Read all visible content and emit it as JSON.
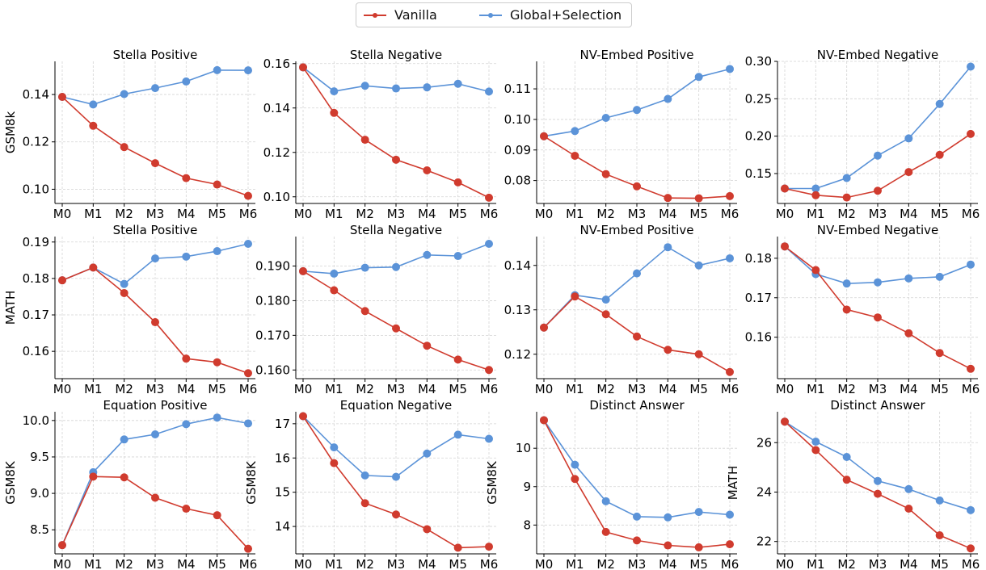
{
  "legend": {
    "placement": "top-center",
    "entries": [
      {
        "label": "Vanilla",
        "color": "#d03b2e"
      },
      {
        "label": "Global+Selection",
        "color": "#5b93d8"
      }
    ]
  },
  "chart_data": [
    {
      "type": "line",
      "title": "Stella Positive",
      "ylabel": "GSM8k",
      "categories": [
        "M0",
        "M1",
        "M2",
        "M3",
        "M4",
        "M5",
        "M6"
      ],
      "ylim": [
        0.094,
        0.154
      ],
      "yticks": [
        0.1,
        0.12,
        0.14
      ],
      "yticklabels": [
        "0.10",
        "0.12",
        "0.14"
      ],
      "series": [
        {
          "name": "Vanilla",
          "values": [
            0.139,
            0.1268,
            0.1178,
            0.111,
            0.1047,
            0.102,
            0.0972
          ]
        },
        {
          "name": "Global+Selection",
          "values": [
            0.139,
            0.1358,
            0.1402,
            0.1427,
            0.1455,
            0.1503,
            0.1502
          ]
        }
      ]
    },
    {
      "type": "line",
      "title": "Stella Negative",
      "ylabel": "",
      "categories": [
        "M0",
        "M1",
        "M2",
        "M3",
        "M4",
        "M5",
        "M6"
      ],
      "ylim": [
        0.097,
        0.161
      ],
      "yticks": [
        0.1,
        0.12,
        0.14,
        0.16
      ],
      "yticklabels": [
        "0.10",
        "0.12",
        "0.14",
        "0.16"
      ],
      "series": [
        {
          "name": "Vanilla",
          "values": [
            0.1583,
            0.1378,
            0.1257,
            0.1167,
            0.1119,
            0.1065,
            0.0996
          ]
        },
        {
          "name": "Global+Selection",
          "values": [
            0.1583,
            0.1475,
            0.15,
            0.1488,
            0.1493,
            0.1509,
            0.1474
          ]
        }
      ]
    },
    {
      "type": "line",
      "title": "NV-Embed Positive",
      "ylabel": "",
      "categories": [
        "M0",
        "M1",
        "M2",
        "M3",
        "M4",
        "M5",
        "M6"
      ],
      "ylim": [
        0.0725,
        0.119
      ],
      "yticks": [
        0.08,
        0.09,
        0.1,
        0.11
      ],
      "yticklabels": [
        "0.08",
        "0.09",
        "0.10",
        "0.11"
      ],
      "series": [
        {
          "name": "Vanilla",
          "values": [
            0.0945,
            0.0881,
            0.0821,
            0.0781,
            0.0743,
            0.0742,
            0.0749
          ]
        },
        {
          "name": "Global+Selection",
          "values": [
            0.0945,
            0.0962,
            0.1005,
            0.1031,
            0.1067,
            0.1139,
            0.1165
          ]
        }
      ]
    },
    {
      "type": "line",
      "title": "NV-Embed Negative",
      "ylabel": "",
      "categories": [
        "M0",
        "M1",
        "M2",
        "M3",
        "M4",
        "M5",
        "M6"
      ],
      "ylim": [
        0.11,
        0.3
      ],
      "yticks": [
        0.15,
        0.2,
        0.25,
        0.3
      ],
      "yticklabels": [
        "0.15",
        "0.20",
        "0.25",
        "0.30"
      ],
      "series": [
        {
          "name": "Vanilla",
          "values": [
            0.13,
            0.121,
            0.118,
            0.127,
            0.152,
            0.175,
            0.203
          ]
        },
        {
          "name": "Global+Selection",
          "values": [
            0.13,
            0.13,
            0.144,
            0.174,
            0.197,
            0.243,
            0.293
          ]
        }
      ]
    },
    {
      "type": "line",
      "title": "Stella Positive",
      "ylabel": "MATH",
      "categories": [
        "M0",
        "M1",
        "M2",
        "M3",
        "M4",
        "M5",
        "M6"
      ],
      "ylim": [
        0.1525,
        0.1915
      ],
      "yticks": [
        0.16,
        0.17,
        0.18,
        0.19
      ],
      "yticklabels": [
        "0.16",
        "0.17",
        "0.18",
        "0.19"
      ],
      "series": [
        {
          "name": "Vanilla",
          "values": [
            0.1795,
            0.183,
            0.176,
            0.168,
            0.158,
            0.157,
            0.154
          ]
        },
        {
          "name": "Global+Selection",
          "values": [
            0.1795,
            0.183,
            0.1785,
            0.1855,
            0.186,
            0.1875,
            0.1895
          ]
        }
      ]
    },
    {
      "type": "line",
      "title": "Stella Negative",
      "ylabel": "",
      "categories": [
        "M0",
        "M1",
        "M2",
        "M3",
        "M4",
        "M5",
        "M6"
      ],
      "ylim": [
        0.1575,
        0.1985
      ],
      "yticks": [
        0.16,
        0.17,
        0.18,
        0.19
      ],
      "yticklabels": [
        "0.160",
        "0.170",
        "0.180",
        "0.190"
      ],
      "series": [
        {
          "name": "Vanilla",
          "values": [
            0.1885,
            0.183,
            0.177,
            0.172,
            0.167,
            0.163,
            0.16
          ]
        },
        {
          "name": "Global+Selection",
          "values": [
            0.1885,
            0.1878,
            0.1895,
            0.1897,
            0.1932,
            0.1929,
            0.1964
          ]
        }
      ]
    },
    {
      "type": "line",
      "title": "NV-Embed Positive",
      "ylabel": "",
      "categories": [
        "M0",
        "M1",
        "M2",
        "M3",
        "M4",
        "M5",
        "M6"
      ],
      "ylim": [
        0.1145,
        0.1465
      ],
      "yticks": [
        0.12,
        0.13,
        0.14
      ],
      "yticklabels": [
        "0.12",
        "0.13",
        "0.14"
      ],
      "series": [
        {
          "name": "Vanilla",
          "values": [
            0.126,
            0.133,
            0.129,
            0.124,
            0.121,
            0.12,
            0.116
          ]
        },
        {
          "name": "Global+Selection",
          "values": [
            0.126,
            0.1333,
            0.1323,
            0.1382,
            0.1441,
            0.14,
            0.1416
          ]
        }
      ]
    },
    {
      "type": "line",
      "title": "NV-Embed Negative",
      "ylabel": "",
      "categories": [
        "M0",
        "M1",
        "M2",
        "M3",
        "M4",
        "M5",
        "M6"
      ],
      "ylim": [
        0.1495,
        0.1855
      ],
      "yticks": [
        0.16,
        0.17,
        0.18
      ],
      "yticklabels": [
        "0.16",
        "0.17",
        "0.18"
      ],
      "series": [
        {
          "name": "Vanilla",
          "values": [
            0.183,
            0.177,
            0.167,
            0.165,
            0.161,
            0.156,
            0.152
          ]
        },
        {
          "name": "Global+Selection",
          "values": [
            0.183,
            0.176,
            0.1736,
            0.1739,
            0.1749,
            0.1753,
            0.1784
          ]
        }
      ]
    },
    {
      "type": "line",
      "title": "Equation Positive",
      "ylabel": "GSM8K",
      "categories": [
        "M0",
        "M1",
        "M2",
        "M3",
        "M4",
        "M5",
        "M6"
      ],
      "ylim": [
        8.17,
        10.12
      ],
      "yticks": [
        8.5,
        9.0,
        9.5,
        10.0
      ],
      "yticklabels": [
        "8.5",
        "9.0",
        "9.5",
        "10.0"
      ],
      "series": [
        {
          "name": "Vanilla",
          "values": [
            8.29,
            9.23,
            9.22,
            8.94,
            8.79,
            8.7,
            8.24
          ]
        },
        {
          "name": "Global+Selection",
          "values": [
            8.29,
            9.29,
            9.74,
            9.81,
            9.95,
            10.04,
            9.96
          ]
        }
      ]
    },
    {
      "type": "line",
      "title": "Equation Negative",
      "ylabel": "GSM8K",
      "categories": [
        "M0",
        "M1",
        "M2",
        "M3",
        "M4",
        "M5",
        "M6"
      ],
      "ylim": [
        13.2,
        17.35
      ],
      "yticks": [
        14,
        15,
        16,
        17
      ],
      "yticklabels": [
        "14",
        "15",
        "16",
        "17"
      ],
      "series": [
        {
          "name": "Vanilla",
          "values": [
            17.22,
            15.85,
            14.68,
            14.35,
            13.92,
            13.38,
            13.41
          ]
        },
        {
          "name": "Global+Selection",
          "values": [
            17.22,
            16.31,
            15.49,
            15.45,
            16.13,
            16.68,
            16.56
          ]
        }
      ]
    },
    {
      "type": "line",
      "title": "Distinct Answer",
      "ylabel": "GSM8K",
      "categories": [
        "M0",
        "M1",
        "M2",
        "M3",
        "M4",
        "M5",
        "M6"
      ],
      "ylim": [
        7.25,
        10.95
      ],
      "yticks": [
        8,
        9,
        10
      ],
      "yticklabels": [
        "8",
        "9",
        "10"
      ],
      "series": [
        {
          "name": "Vanilla",
          "values": [
            10.73,
            9.2,
            7.82,
            7.6,
            7.47,
            7.42,
            7.5
          ]
        },
        {
          "name": "Global+Selection",
          "values": [
            10.73,
            9.57,
            8.62,
            8.22,
            8.2,
            8.34,
            8.27
          ]
        }
      ]
    },
    {
      "type": "line",
      "title": "Distinct Answer",
      "ylabel": "MATH",
      "categories": [
        "M0",
        "M1",
        "M2",
        "M3",
        "M4",
        "M5",
        "M6"
      ],
      "ylim": [
        21.5,
        27.25
      ],
      "yticks": [
        22,
        24,
        26
      ],
      "yticklabels": [
        "22",
        "24",
        "26"
      ],
      "series": [
        {
          "name": "Vanilla",
          "values": [
            26.85,
            25.7,
            24.5,
            23.93,
            23.33,
            22.25,
            21.72
          ]
        },
        {
          "name": "Global+Selection",
          "values": [
            26.85,
            26.04,
            25.42,
            24.45,
            24.12,
            23.66,
            23.27
          ]
        }
      ]
    }
  ]
}
